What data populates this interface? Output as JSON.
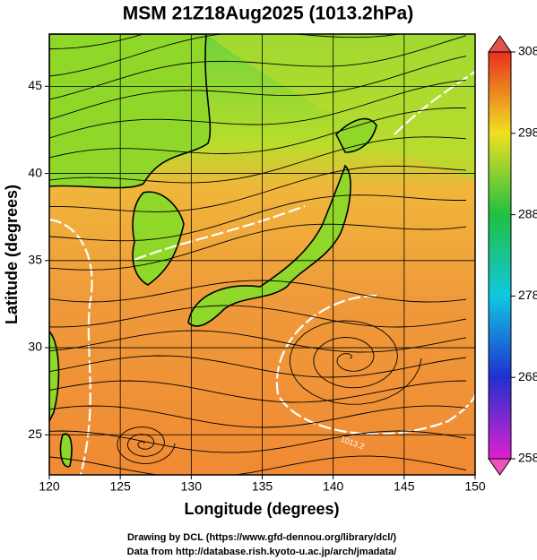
{
  "header": {
    "title": "MSM 21Z18Aug2025 (1013.2hPa)"
  },
  "map": {
    "xlabel": "Longitude (degrees)",
    "ylabel": "Latitude  (degrees)",
    "xlim": [
      120,
      150
    ],
    "ylim": [
      22.7,
      48
    ],
    "xticks": [
      120,
      125,
      130,
      135,
      140,
      145,
      150
    ],
    "yticks": [
      25,
      30,
      35,
      40,
      45
    ],
    "grid": true,
    "contour_label": "1013.2"
  },
  "colorbar": {
    "lim": [
      258,
      308
    ],
    "ticks": [
      258,
      268,
      278,
      288,
      298,
      308
    ]
  },
  "footer": [
    "Drawing by DCL (https://www.gfd-dennou.org/library/dcl/)",
    "Data from http://database.rish.kyoto-u.ac.jp/arch/jmadata/"
  ]
}
